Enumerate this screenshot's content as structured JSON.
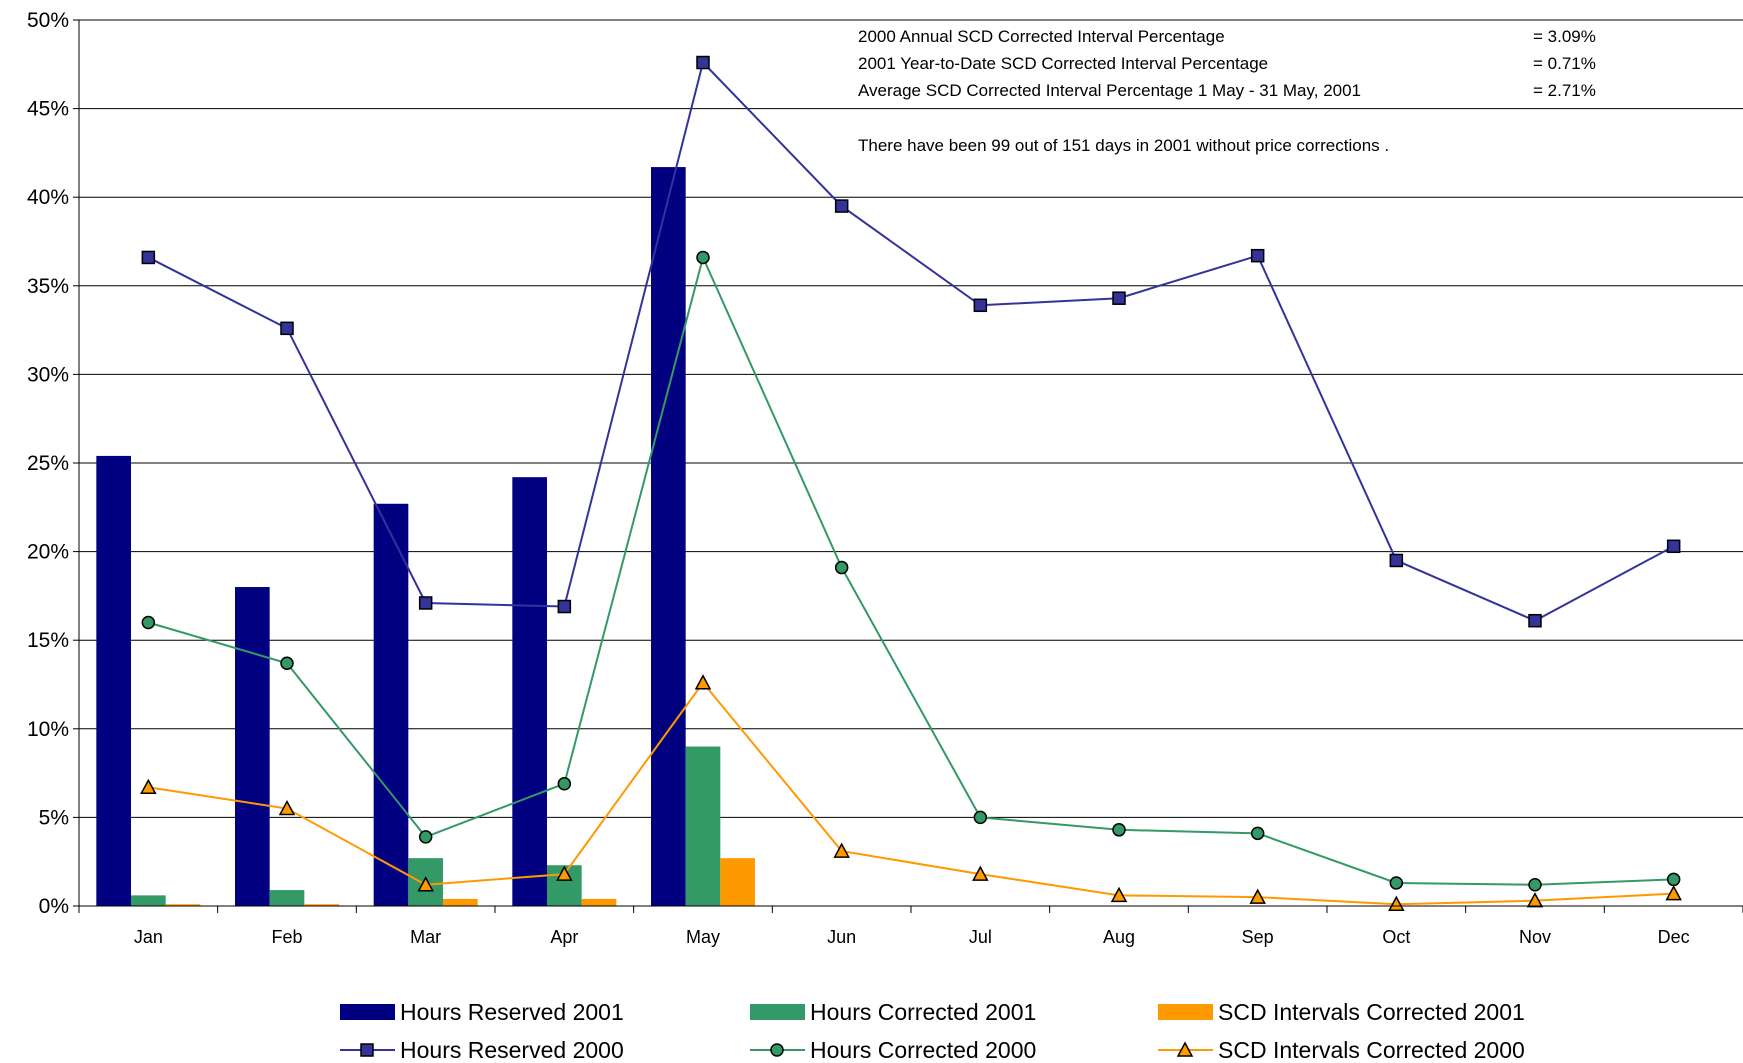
{
  "chart_data": {
    "type": "bar",
    "categories": [
      "Jan",
      "Feb",
      "Mar",
      "Apr",
      "May",
      "Jun",
      "Jul",
      "Aug",
      "Sep",
      "Oct",
      "Nov",
      "Dec"
    ],
    "ylim": [
      0,
      50
    ],
    "yticks": [
      "0%",
      "5%",
      "10%",
      "15%",
      "20%",
      "25%",
      "30%",
      "35%",
      "40%",
      "45%",
      "50%"
    ],
    "grid": true,
    "legend_position": "bottom",
    "bar_series": [
      {
        "name": "Hours Reserved 2001",
        "color": "#000080",
        "values": [
          25.4,
          18.0,
          22.7,
          24.2,
          41.7,
          null,
          null,
          null,
          null,
          null,
          null,
          null
        ]
      },
      {
        "name": "Hours Corrected 2001",
        "color": "#339966",
        "values": [
          0.6,
          0.9,
          2.7,
          2.3,
          9.0,
          null,
          null,
          null,
          null,
          null,
          null,
          null
        ]
      },
      {
        "name": "SCD Intervals Corrected 2001",
        "color": "#FF9900",
        "values": [
          0.1,
          0.1,
          0.4,
          0.4,
          2.7,
          null,
          null,
          null,
          null,
          null,
          null,
          null
        ]
      }
    ],
    "line_series": [
      {
        "name": "Hours Reserved 2000",
        "color": "#333399",
        "marker": "square",
        "values": [
          36.6,
          32.6,
          17.1,
          16.9,
          47.6,
          39.5,
          33.9,
          34.3,
          36.7,
          19.5,
          16.1,
          20.3
        ]
      },
      {
        "name": "Hours Corrected 2000",
        "color": "#339966",
        "marker": "circle",
        "values": [
          16.0,
          13.7,
          3.9,
          6.9,
          36.6,
          19.1,
          5.0,
          4.3,
          4.1,
          1.3,
          1.2,
          1.5
        ]
      },
      {
        "name": "SCD Intervals Corrected 2000",
        "color": "#FF9900",
        "marker": "triangle",
        "values": [
          6.7,
          5.5,
          1.2,
          1.8,
          12.6,
          3.1,
          1.8,
          0.6,
          0.5,
          0.1,
          0.3,
          0.7
        ]
      }
    ],
    "annotations": [
      {
        "label": "2000 Annual SCD Corrected Interval Percentage",
        "value": "= 3.09%"
      },
      {
        "label": "2001 Year-to-Date SCD Corrected Interval Percentage",
        "value": "= 0.71%"
      },
      {
        "label": "Average SCD Corrected Interval Percentage 1 May - 31 May, 2001",
        "value": "= 2.71%"
      }
    ],
    "note": "There have been 99 out of 151 days in 2001 without price corrections ."
  }
}
